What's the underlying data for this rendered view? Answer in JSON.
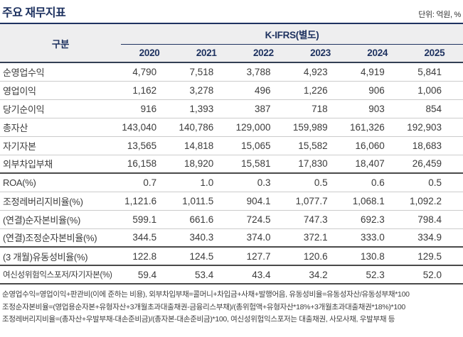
{
  "page": {
    "title": "주요 재무지표",
    "unit_label": "단위: 억원, %"
  },
  "table": {
    "group_header": "구분",
    "standard_header": "K-IFRS(별도)",
    "years": [
      "2020",
      "2021",
      "2022",
      "2023",
      "2024",
      "2025"
    ],
    "rows": [
      {
        "label": "순영업수익",
        "values": [
          "4,790",
          "7,518",
          "3,788",
          "4,923",
          "4,919",
          "5,841"
        ]
      },
      {
        "label": "영업이익",
        "values": [
          "1,162",
          "3,278",
          "496",
          "1,226",
          "906",
          "1,006"
        ]
      },
      {
        "label": "당기순이익",
        "values": [
          "916",
          "1,393",
          "387",
          "718",
          "903",
          "854"
        ]
      },
      {
        "label": "총자산",
        "values": [
          "143,040",
          "140,786",
          "129,000",
          "159,989",
          "161,326",
          "192,903"
        ]
      },
      {
        "label": "자기자본",
        "values": [
          "13,565",
          "14,818",
          "15,065",
          "15,582",
          "16,060",
          "18,683"
        ]
      },
      {
        "label": "외부차입부채",
        "values": [
          "16,158",
          "18,920",
          "15,581",
          "17,830",
          "18,407",
          "26,459"
        ],
        "section_end": true
      },
      {
        "label": "ROA(%)",
        "values": [
          "0.7",
          "1.0",
          "0.3",
          "0.5",
          "0.6",
          "0.5"
        ]
      },
      {
        "label": "조정레버리지비율(%)",
        "values": [
          "1,121.6",
          "1,011.5",
          "904.1",
          "1,077.7",
          "1,068.1",
          "1,092.2"
        ]
      },
      {
        "label": "(연결)순자본비율(%)",
        "values": [
          "599.1",
          "661.6",
          "724.5",
          "747.3",
          "692.3",
          "798.4"
        ]
      },
      {
        "label": "(연결)조정순자본비율(%)",
        "values": [
          "344.5",
          "340.3",
          "374.0",
          "372.1",
          "333.0",
          "334.9"
        ],
        "section_end": true
      },
      {
        "label": "(3 개월)유동성비율(%)",
        "values": [
          "122.8",
          "124.5",
          "127.7",
          "120.6",
          "130.8",
          "129.5"
        ],
        "section_end": true
      },
      {
        "label": "여신성위험익스포저/자기자본(%)",
        "values": [
          "59.4",
          "53.4",
          "43.4",
          "34.2",
          "52.3",
          "52.0"
        ],
        "small_label": true,
        "section_end": true
      }
    ]
  },
  "footnotes": {
    "lines": [
      "순영업수익=영업이익+판관비(이에 준하는 비용), 외부차입부채=콜머니+차입금+사채+발행어음, 유동성비율=유동성자산/유동성부채*100",
      "조정순자본비율=(영업용순자본+유형자산+3개월초과대출채권-금융리스부채)/(총위험액+유형자산*18%+3개월초과대출채권*18%)*100",
      "조정레버리지비율=(총자산+우발부채-대손준비금)/(총자본-대손준비금)*100, 여신성위험익스포저는 대출채권, 사모사채, 우발부채 등"
    ]
  },
  "colors": {
    "navy": "#1e3260",
    "header_bg": "#eeeeef",
    "text": "#3b3b3b",
    "row_line": "#cccccc",
    "section_line": "#4a4a4a"
  }
}
